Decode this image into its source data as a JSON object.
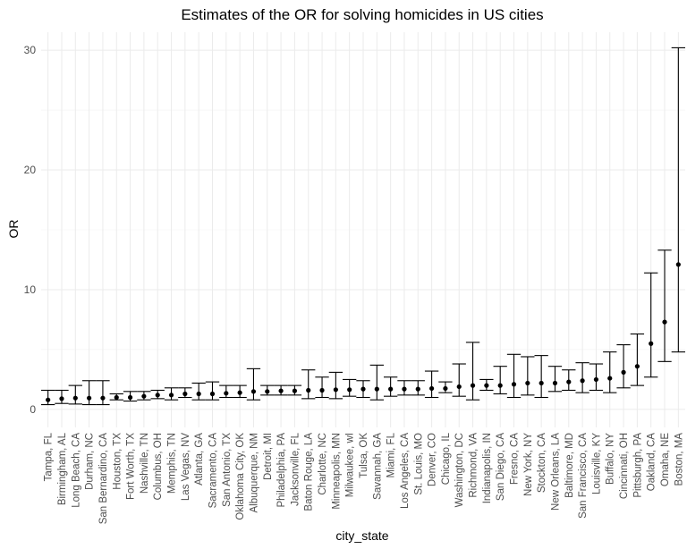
{
  "chart_data": {
    "type": "errorbar",
    "title": "Estimates of the OR for solving homicides in US cities",
    "xlabel": "city_state",
    "ylabel": "OR",
    "ylim": [
      -1.5,
      31.5
    ],
    "yticks": [
      0,
      10,
      20,
      30
    ],
    "grid": true,
    "legend": "none",
    "colors": {
      "point": "#000000",
      "errorbar": "#000000",
      "grid": "#ebebeb",
      "tick_text": "#4d4d4d"
    },
    "categories": [
      "Tampa, FL",
      "Birmingham, AL",
      "Long Beach, CA",
      "Durham, NC",
      "San Bernardino, CA",
      "Houston, TX",
      "Fort Worth, TX",
      "Nashville, TN",
      "Columbus, OH",
      "Memphis, TN",
      "Las Vegas, NV",
      "Atlanta, GA",
      "Sacramento, CA",
      "San Antonio, TX",
      "Oklahoma City, OK",
      "Albuquerque, NM",
      "Detroit, MI",
      "Philadelphia, PA",
      "Jacksonville, FL",
      "Baton Rouge, LA",
      "Charlotte, NC",
      "Minneapolis, MN",
      "Milwaukee, wI",
      "Tulsa, OK",
      "Savannah, GA",
      "Miami, FL",
      "Los Angeles, CA",
      "St. Louis, MO",
      "Denver, CO",
      "Chicago, IL",
      "Washington, DC",
      "Richmond, VA",
      "Indianapolis, IN",
      "San Diego, CA",
      "Fresno, CA",
      "New York, NY",
      "Stockton, CA",
      "New Orleans, LA",
      "Baltimore, MD",
      "San Francisco, CA",
      "Louisville, KY",
      "Buffalo, NY",
      "Cincinnati, OH",
      "Pittsburgh, PA",
      "Oakland, CA",
      "Omaha, NE",
      "Boston, MA"
    ],
    "estimate": [
      0.8,
      0.9,
      0.95,
      0.95,
      0.95,
      1.0,
      1.0,
      1.1,
      1.2,
      1.2,
      1.3,
      1.3,
      1.3,
      1.35,
      1.4,
      1.5,
      1.5,
      1.55,
      1.55,
      1.6,
      1.6,
      1.65,
      1.65,
      1.7,
      1.7,
      1.7,
      1.7,
      1.7,
      1.75,
      1.75,
      1.9,
      2.0,
      2.0,
      2.0,
      2.1,
      2.2,
      2.2,
      2.2,
      2.3,
      2.4,
      2.5,
      2.6,
      3.1,
      3.6,
      5.5,
      7.3,
      12.1
    ],
    "lower": [
      0.4,
      0.5,
      0.45,
      0.4,
      0.4,
      0.8,
      0.7,
      0.8,
      0.9,
      0.8,
      1.0,
      0.8,
      0.8,
      1.0,
      1.0,
      0.8,
      1.2,
      1.2,
      1.2,
      0.9,
      1.0,
      0.9,
      1.1,
      1.0,
      0.8,
      1.1,
      1.2,
      1.2,
      1.0,
      1.4,
      1.1,
      0.8,
      1.6,
      1.3,
      1.0,
      1.2,
      1.0,
      1.5,
      1.6,
      1.4,
      1.6,
      1.4,
      1.8,
      2.0,
      2.7,
      4.0,
      4.8
    ],
    "upper": [
      1.6,
      1.6,
      2.0,
      2.4,
      2.4,
      1.3,
      1.5,
      1.5,
      1.6,
      1.8,
      1.8,
      2.2,
      2.3,
      2.0,
      2.0,
      3.4,
      2.0,
      2.0,
      2.0,
      3.3,
      2.7,
      3.1,
      2.5,
      2.4,
      3.7,
      2.7,
      2.4,
      2.4,
      3.2,
      2.3,
      3.8,
      5.6,
      2.5,
      3.6,
      4.6,
      4.4,
      4.5,
      3.6,
      3.3,
      3.9,
      3.8,
      4.8,
      5.4,
      6.3,
      11.4,
      13.3,
      30.2
    ]
  }
}
